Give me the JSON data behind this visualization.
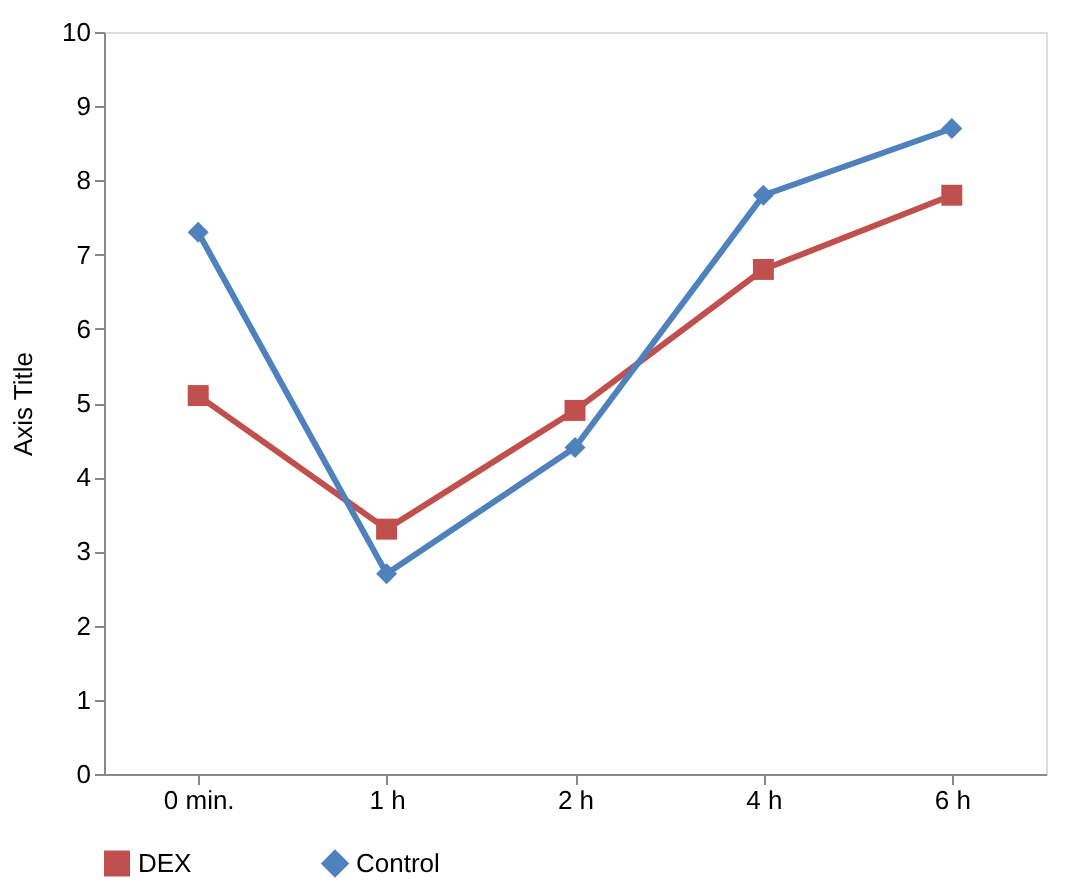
{
  "chart_data": {
    "type": "line",
    "ylabel": "Axis Title",
    "categories": [
      "0 min.",
      "1 h",
      "2 h",
      "4 h",
      "6 h"
    ],
    "series": [
      {
        "name": "DEX",
        "color": "#c0504d",
        "marker": "square",
        "values": [
          5.1,
          3.3,
          4.9,
          6.8,
          7.8
        ]
      },
      {
        "name": "Control",
        "color": "#4f81bd",
        "marker": "diamond",
        "values": [
          7.3,
          2.7,
          4.4,
          7.8,
          8.7
        ]
      }
    ],
    "ylim": [
      0,
      10
    ],
    "yticks": [
      0,
      1,
      2,
      3,
      4,
      5,
      6,
      7,
      8,
      9,
      10
    ],
    "grid": false,
    "legend": "bottom",
    "line_style": "solid"
  }
}
